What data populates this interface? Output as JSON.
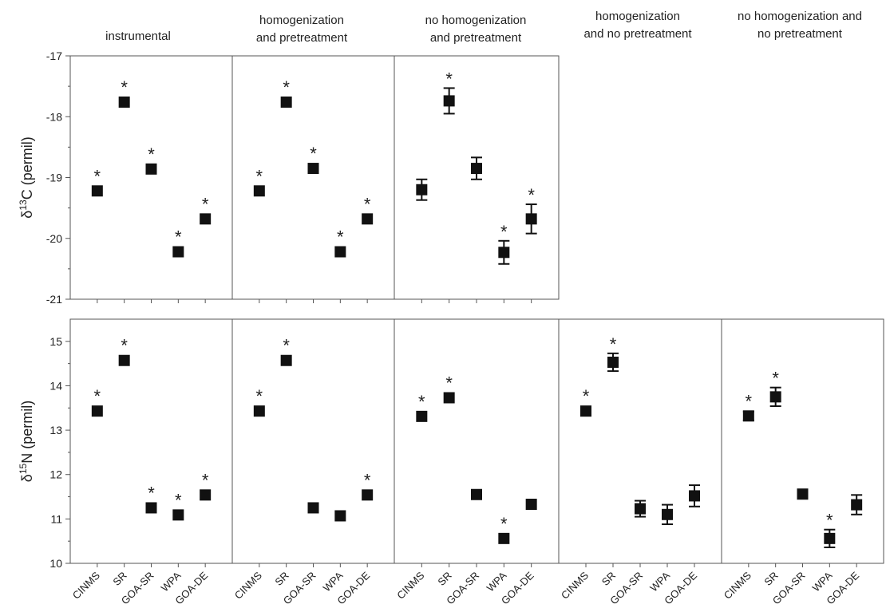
{
  "panel_titles": [
    [
      "instrumental"
    ],
    [
      "homogenization",
      "and pretreatment"
    ],
    [
      "no homogenization",
      "and pretreatment"
    ],
    [
      "homogenization",
      "and no pretreatment"
    ],
    [
      "no homogenization and",
      "no pretreatment"
    ]
  ],
  "chart_data": [
    {
      "type": "scatter",
      "ylabel": "δ13C (permil)",
      "ylim": [
        -21,
        -17
      ],
      "yticks": [
        -21,
        -20,
        -19,
        -18,
        -17
      ],
      "panels": [
        {
          "categories": [
            "CINMS",
            "SR",
            "GOA-SR",
            "WPA",
            "GOA-DE"
          ],
          "values": [
            -19.22,
            -17.76,
            -18.86,
            -20.22,
            -19.68
          ],
          "errors": [
            0,
            0,
            0,
            0,
            0
          ],
          "significant": [
            true,
            true,
            true,
            true,
            true
          ]
        },
        {
          "categories": [
            "CINMS",
            "SR",
            "GOA-SR",
            "WPA",
            "GOA-DE"
          ],
          "values": [
            -19.22,
            -17.76,
            -18.85,
            -20.22,
            -19.68
          ],
          "errors": [
            0,
            0,
            0,
            0,
            0
          ],
          "significant": [
            true,
            true,
            true,
            true,
            true
          ]
        },
        {
          "categories": [
            "CINMS",
            "SR",
            "GOA-SR",
            "WPA",
            "GOA-DE"
          ],
          "values": [
            -19.2,
            -17.74,
            -18.85,
            -20.23,
            -19.68
          ],
          "errors": [
            0.17,
            0.21,
            0.18,
            0.19,
            0.24
          ],
          "significant": [
            false,
            true,
            false,
            true,
            true
          ]
        }
      ]
    },
    {
      "type": "scatter",
      "ylabel": "δ15N (permil)",
      "ylim": [
        10,
        15.5
      ],
      "yticks": [
        10,
        11,
        12,
        13,
        14,
        15
      ],
      "panels": [
        {
          "categories": [
            "CINMS",
            "SR",
            "GOA-SR",
            "WPA",
            "GOA-DE"
          ],
          "values": [
            13.43,
            14.57,
            11.25,
            11.09,
            11.54
          ],
          "errors": [
            0,
            0,
            0,
            0,
            0
          ],
          "significant": [
            true,
            true,
            true,
            true,
            true
          ]
        },
        {
          "categories": [
            "CINMS",
            "SR",
            "GOA-SR",
            "WPA",
            "GOA-DE"
          ],
          "values": [
            13.43,
            14.57,
            11.25,
            11.07,
            11.54
          ],
          "errors": [
            0,
            0,
            0,
            0,
            0
          ],
          "significant": [
            true,
            true,
            false,
            false,
            true
          ]
        },
        {
          "categories": [
            "CINMS",
            "SR",
            "GOA-SR",
            "WPA",
            "GOA-DE"
          ],
          "values": [
            13.31,
            13.73,
            11.55,
            10.56,
            11.33
          ],
          "errors": [
            0,
            0,
            0,
            0,
            0
          ],
          "significant": [
            true,
            true,
            false,
            true,
            false
          ]
        },
        {
          "categories": [
            "CINMS",
            "SR",
            "GOA-SR",
            "WPA",
            "GOA-DE"
          ],
          "values": [
            13.43,
            14.53,
            11.23,
            11.1,
            11.52
          ],
          "errors": [
            0.1,
            0.2,
            0.18,
            0.22,
            0.24
          ],
          "significant": [
            true,
            true,
            false,
            false,
            false
          ]
        },
        {
          "categories": [
            "CINMS",
            "SR",
            "GOA-SR",
            "WPA",
            "GOA-DE"
          ],
          "values": [
            13.32,
            13.75,
            11.56,
            10.56,
            11.32
          ],
          "errors": [
            0.1,
            0.21,
            0.1,
            0.2,
            0.22
          ],
          "significant": [
            true,
            true,
            false,
            true,
            false
          ]
        }
      ]
    }
  ],
  "significance_marker": "*"
}
